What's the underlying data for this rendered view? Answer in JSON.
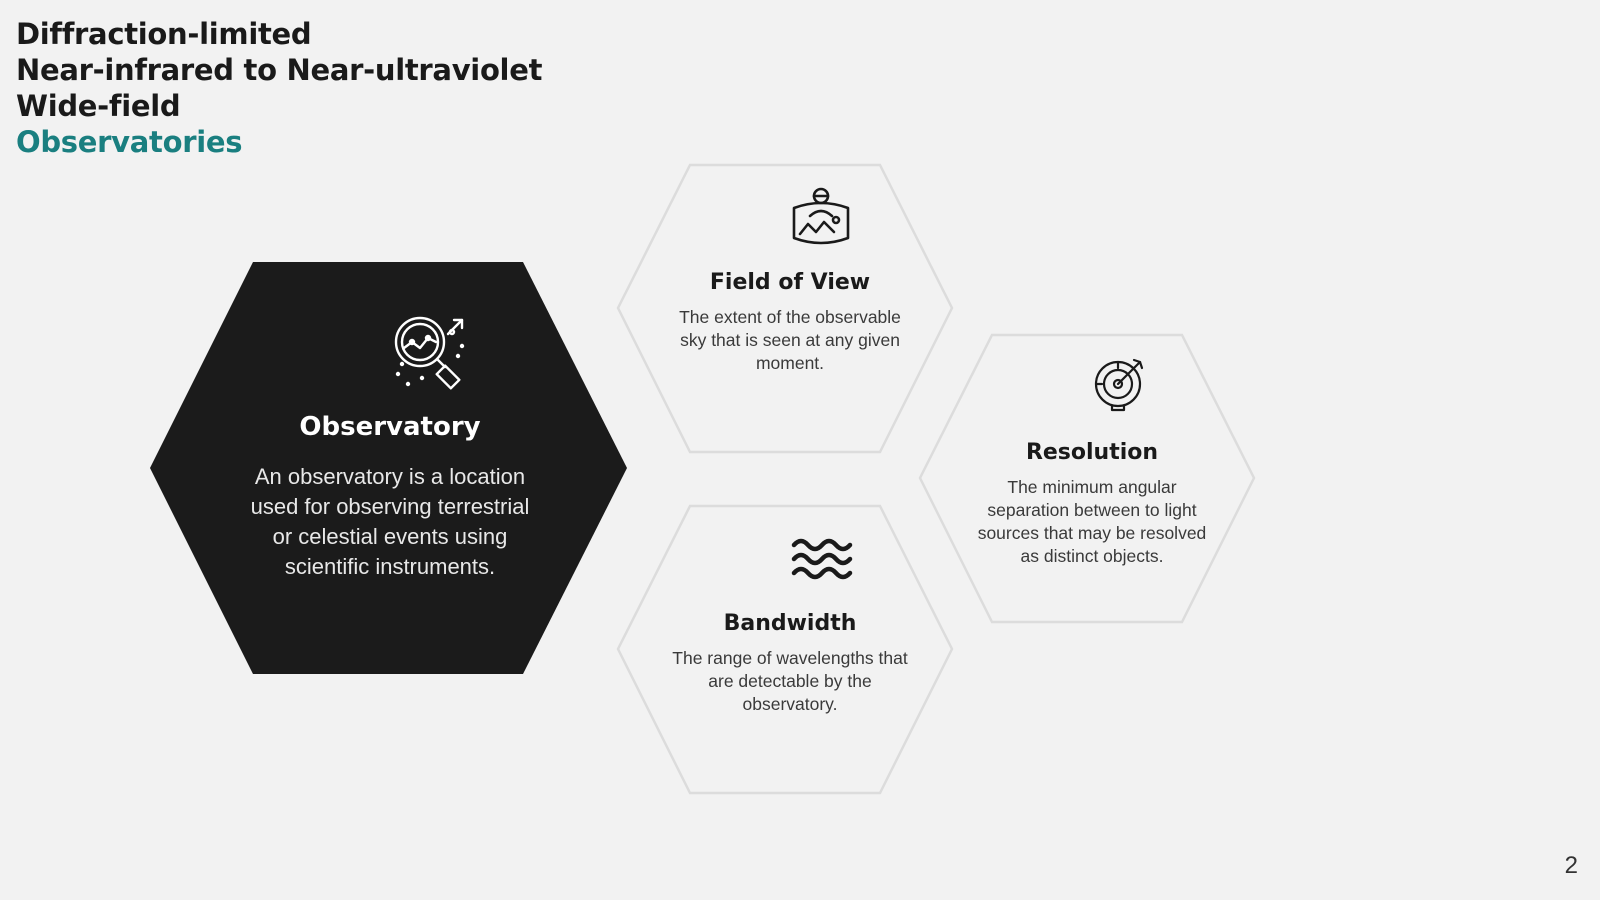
{
  "title": {
    "lines": [
      "Diffraction-limited",
      "Near-infrared to Near-ultraviolet",
      "Wide-field"
    ],
    "accent": "Observatories",
    "accent_color": "#1a7f80"
  },
  "hexagons": {
    "main": {
      "icon": "magnifier-chart-icon",
      "heading": "Observatory",
      "text": "An observatory is a location used for observing terrestrial or celestial events using scientific instruments.",
      "fill": "#1b1b1b"
    },
    "field_of_view": {
      "icon": "panorama-viewer-icon",
      "heading": "Field of View",
      "text": "The extent of the observable sky that is seen at any given moment."
    },
    "resolution": {
      "icon": "target-arrow-icon",
      "heading": "Resolution",
      "text": "The minimum angular separation between to light sources that may be resolved as distinct objects."
    },
    "bandwidth": {
      "icon": "waves-icon",
      "heading": "Bandwidth",
      "text": "The range of wavelengths that are detectable by the observatory."
    }
  },
  "page_number": "2"
}
